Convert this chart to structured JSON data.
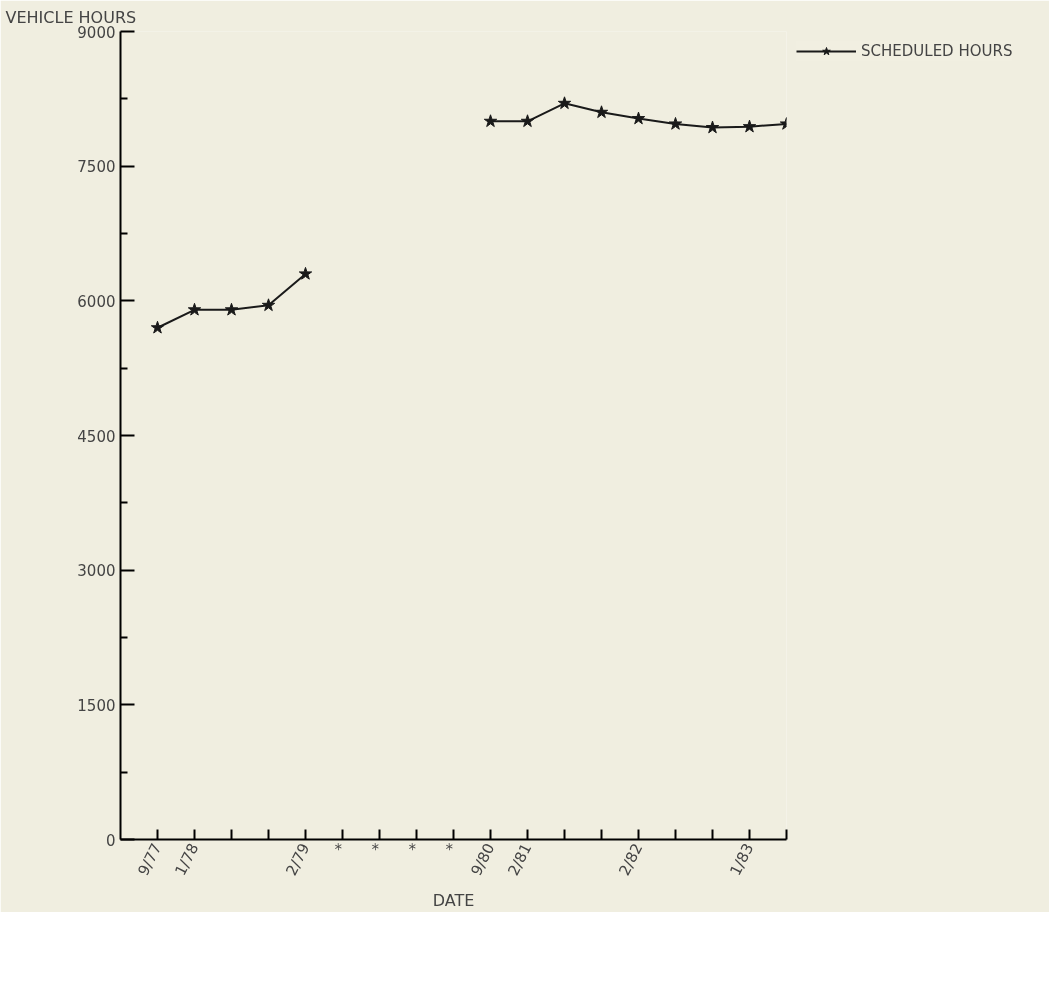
{
  "chart_data": {
    "type": "line",
    "ylabel": "VEHICLE HOURS",
    "xlabel": "DATE",
    "categories": [
      "9/77",
      "1/78",
      null,
      null,
      "2/79",
      "*",
      "*",
      "*",
      "*",
      "9/80",
      "2/81",
      null,
      null,
      "2/82",
      null,
      null,
      "1/83",
      null
    ],
    "ylim": [
      0,
      9000
    ],
    "yticks": [
      0,
      {
        "value": 750,
        "label": null
      },
      1500,
      {
        "value": 2250,
        "label": null
      },
      3000,
      {
        "value": 3750,
        "label": null
      },
      4500,
      {
        "value": 5250,
        "label": null
      },
      6000,
      {
        "value": 6750,
        "label": null
      },
      7500,
      {
        "value": 8250,
        "label": null
      },
      9000
    ],
    "series": [
      {
        "name": "SCHEDULED HOURS",
        "color": "#1a1a1a",
        "values": [
          5700,
          5900,
          5900,
          5950,
          6300,
          null,
          null,
          null,
          null,
          8000,
          8000,
          8200,
          8100,
          8030,
          7970,
          7930,
          7940,
          7970
        ]
      }
    ],
    "marker": "star",
    "line_style": "solid",
    "grid": false,
    "legend": "top right"
  }
}
